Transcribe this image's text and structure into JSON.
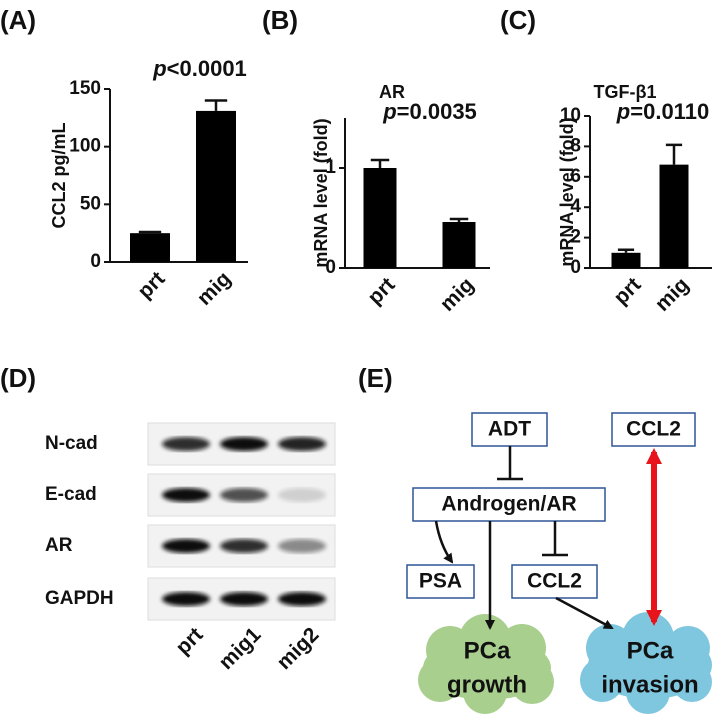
{
  "panel_labels": [
    "(A)",
    "(B)",
    "(C)",
    "(D)",
    "(E)"
  ],
  "chart_data": [
    {
      "type": "bar",
      "annotation": [
        "p",
        "<0.0001"
      ],
      "y_label": "CCL2 pg/mL",
      "categories": [
        "prt",
        "mig"
      ],
      "values": [
        25,
        131
      ],
      "errors": [
        1,
        9
      ],
      "color": "#000000",
      "ylim": [
        0,
        150
      ],
      "yticks": [
        0,
        50,
        100,
        150
      ]
    },
    {
      "type": "bar",
      "title": "AR",
      "annotation": [
        "p",
        "=0.0035"
      ],
      "y_label": "mRNA level (fold)",
      "categories": [
        "prt",
        "mig"
      ],
      "values": [
        1.0,
        0.46
      ],
      "errors": [
        0.08,
        0.03
      ],
      "color": "#000000",
      "ylim": [
        0,
        1.5
      ],
      "yticks": [
        0,
        1
      ]
    },
    {
      "type": "bar",
      "title": "TGF-β1",
      "annotation": [
        "p",
        "=0.0110"
      ],
      "y_label": "mRNA level (fold)",
      "categories": [
        "prt",
        "mig"
      ],
      "values": [
        1.0,
        6.8
      ],
      "errors": [
        0.2,
        1.3
      ],
      "color": "#000000",
      "ylim": [
        0,
        10
      ],
      "yticks": [
        0,
        2,
        4,
        6,
        8,
        10
      ]
    }
  ],
  "blot": {
    "rows": [
      "N-cad",
      "E-cad",
      "AR",
      "GAPDH"
    ],
    "lanes": [
      "prt",
      "mig1",
      "mig2"
    ]
  },
  "diagram": {
    "nodes": [
      "ADT",
      "CCL2",
      "Androgen/AR",
      "PSA",
      "CCL2"
    ],
    "clouds": [
      [
        "PCa",
        "growth"
      ],
      [
        "PCa",
        "invasion"
      ]
    ]
  }
}
